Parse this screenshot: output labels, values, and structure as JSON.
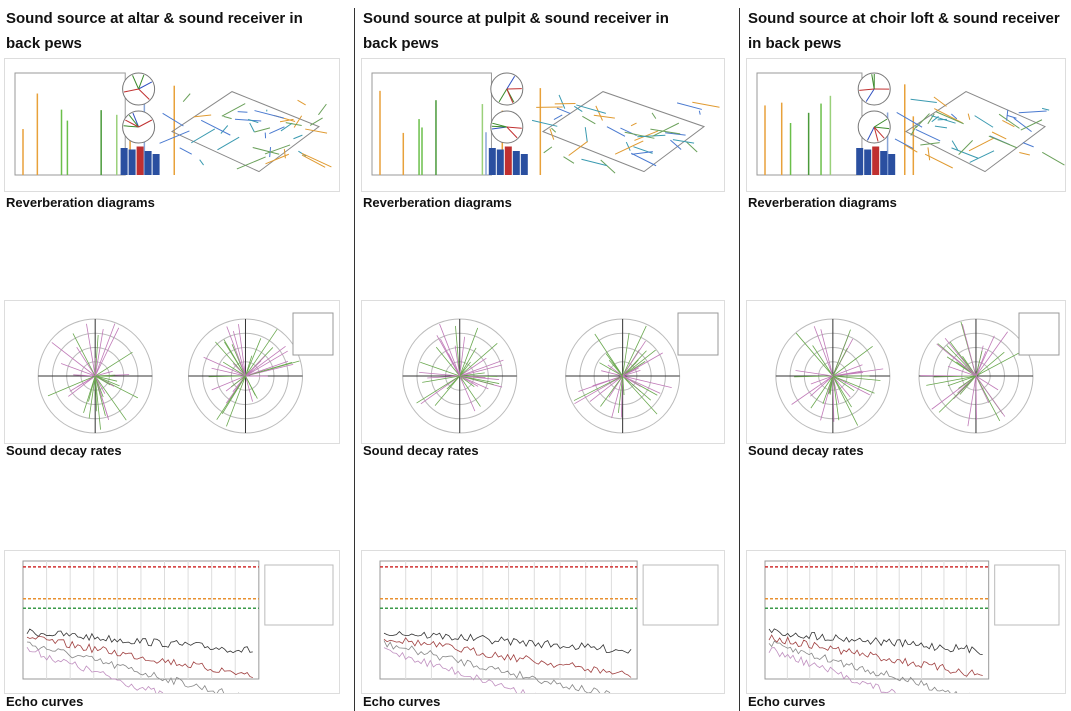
{
  "columns": [
    {
      "heading": "Sound source at altar & sound receiver in back pews",
      "panels": [
        {
          "caption": "Reverberation diagrams"
        },
        {
          "caption": "Sound decay rates"
        },
        {
          "caption": "Echo curves"
        }
      ]
    },
    {
      "heading": "Sound source at pulpit & sound receiver in back pews",
      "panels": [
        {
          "caption": "Reverberation diagrams"
        },
        {
          "caption": "Sound decay rates"
        },
        {
          "caption": "Echo curves"
        }
      ]
    },
    {
      "heading": "Sound source at choir loft & sound receiver in back pews",
      "panels": [
        {
          "caption": "Reverberation diagrams"
        },
        {
          "caption": "Sound decay rates"
        },
        {
          "caption": "Echo curves"
        }
      ]
    }
  ]
}
